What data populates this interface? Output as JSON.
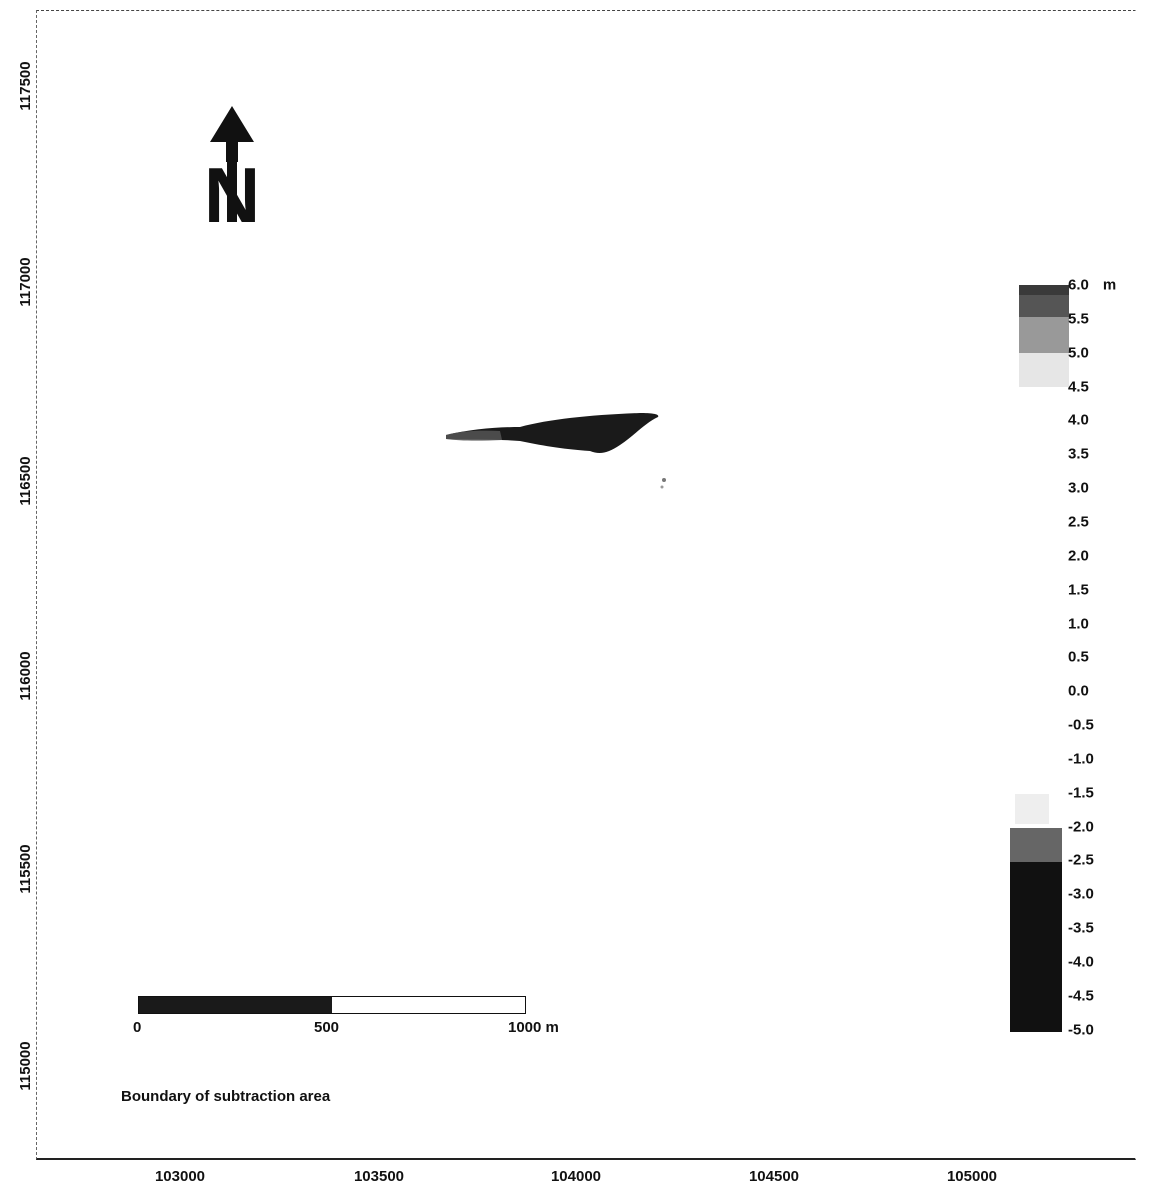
{
  "map": {
    "y_axis_ticks": [
      "117500",
      "117000",
      "116500",
      "116000",
      "115500",
      "115000"
    ],
    "x_axis_ticks": [
      "103000",
      "103500",
      "104000",
      "104500",
      "105000"
    ],
    "north_arrow_label": "N",
    "legend": {
      "unit": "m",
      "labels": [
        "6.0",
        "5.5",
        "5.0",
        "4.5",
        "4.0",
        "3.5",
        "3.0",
        "2.5",
        "2.0",
        "1.5",
        "1.0",
        "0.5",
        "0.0",
        "-0.5",
        "-1.0",
        "-1.5",
        "-2.0",
        "-2.5",
        "-3.0",
        "-3.5",
        "-4.0",
        "-4.5",
        "-5.0"
      ],
      "top_color": "#3a3a3a",
      "bottom_color": "#111111"
    },
    "scale_bar": {
      "labels": [
        "0",
        "500",
        "1000 m"
      ]
    },
    "caption": "Boundary of subtraction area"
  }
}
